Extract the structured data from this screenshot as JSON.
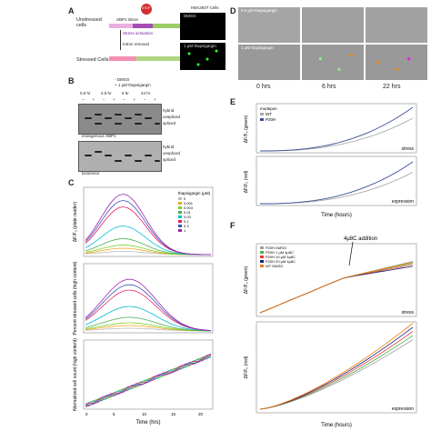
{
  "panel_labels": [
    "A",
    "B",
    "C",
    "D",
    "E",
    "F"
  ],
  "panelA": {
    "unstressed_label": "Unstressed cells",
    "stressed_label": "Stressed Cells",
    "construct_top": "XBP1 intron",
    "stress_activation": "Stress activation",
    "intron_removal": "Intron removal",
    "stop_text": "STOP",
    "hek_title": "HEK293T Cells",
    "img1_label": "DMSO",
    "img2_label": "1 μM thapsigargin"
  },
  "panelB": {
    "legend_dmso": "- DMSO",
    "legend_thap": "+ 1 μM thapsigargin",
    "times": [
      "0.5 hr",
      "2.5 hr",
      "6 hr",
      "24 hr"
    ],
    "signs": [
      "−",
      "+",
      "−",
      "+",
      "−",
      "+",
      "−",
      "+"
    ],
    "band_labels": [
      "hybrid",
      "unspliced",
      "spliced"
    ],
    "gel1_caption": "endogenous XBP1",
    "gel2_caption": "biosensor"
  },
  "panelC": {
    "legend_title": "thapsigargin (μM)",
    "legend_entries": [
      "0",
      "0.001",
      "0.003",
      "0.01",
      "0.03",
      "0.1",
      "0.3",
      "1"
    ],
    "colors": [
      "#bbbbbb",
      "#f5a623",
      "#7ed321",
      "#4caf50",
      "#00bcd4",
      "#e91e63",
      "#3f51b5",
      "#9c27b0"
    ],
    "y1": "ΔF/F₀ (plate reader)",
    "y2": "Percent stressed cells (high content)",
    "y3": "Normalized cell count (high content)",
    "xlabel": "Time (hrs)",
    "xticks": [
      "0",
      "5",
      "10",
      "15",
      "20"
    ]
  },
  "panelD": {
    "img_labels": [
      "0.5 μM thapsigargin",
      "1 μM thapsigargin"
    ],
    "times": [
      "0 hrs",
      "6 hrs",
      "22 hrs"
    ]
  },
  "panelE": {
    "legend_title": "modepon",
    "legend_entries": [
      "WT",
      "P20H"
    ],
    "y1": "ΔF/F₀ (green)",
    "y2": "ΔF/F₀ (red)",
    "top_tag": "stress",
    "bottom_tag": "expression",
    "xlabel": "Time (hours)",
    "xticks": [
      "0",
      "5",
      "10",
      "15",
      "20"
    ]
  },
  "panelF": {
    "annotation": "4μ8C addition",
    "legend_entries": [
      "P20H DMSO",
      "P20H 1 μM 4μ8C",
      "P20H 10 μM 4μ8C",
      "P20H 20 μM 4μ8C",
      "WT DMSO"
    ],
    "colors": [
      "#9e9e9e",
      "#4caf50",
      "#e53935",
      "#1a237e",
      "#f57c00"
    ],
    "y1": "ΔF/F₀ (green)",
    "y2": "ΔF/F₀ (red)",
    "top_tag": "stress",
    "bottom_tag": "expression",
    "xlabel": "Time (hours)",
    "xticks": [
      "0",
      "10",
      "20",
      "30",
      "40"
    ]
  }
}
